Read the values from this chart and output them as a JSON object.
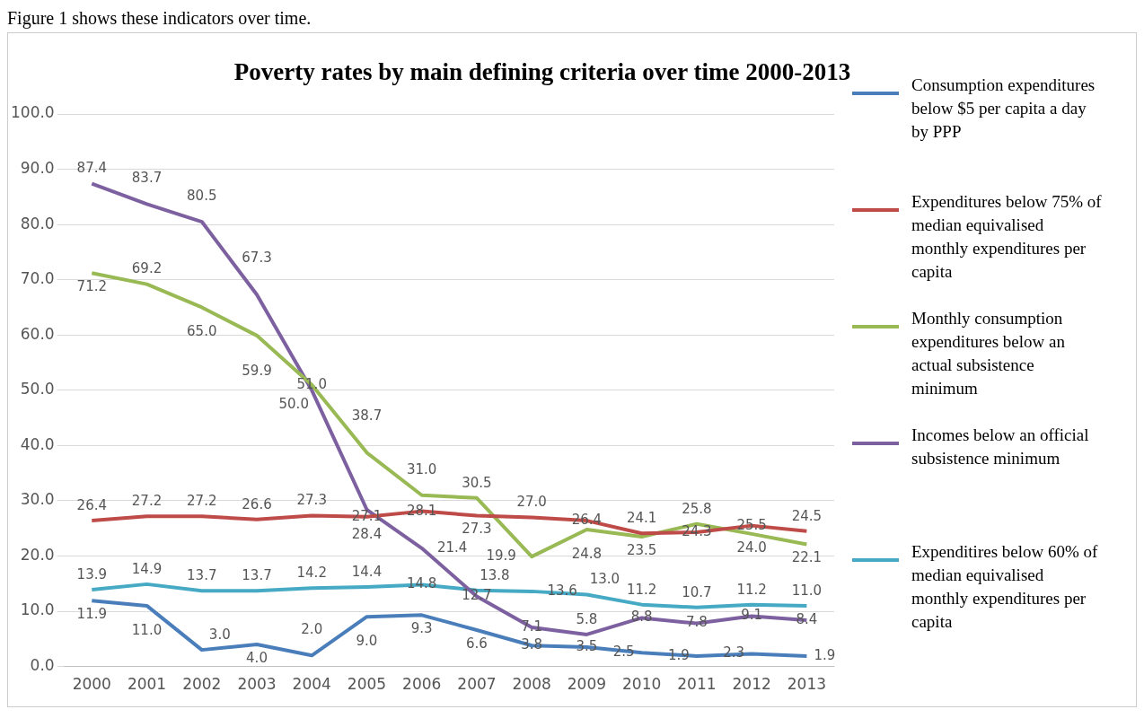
{
  "chart_data": {
    "type": "line",
    "title": "Poverty rates by main defining criteria over time 2000-2013",
    "annotations": [
      "Figure 1 shows these indicators over time."
    ],
    "categories": [
      "2000",
      "2001",
      "2002",
      "2003",
      "2004",
      "2005",
      "2006",
      "2007",
      "2008",
      "2009",
      "2010",
      "2011",
      "2012",
      "2013"
    ],
    "series": [
      {
        "name": "Consumption expenditures below $5 per capita a day by PPP",
        "color": "#4a7ebb",
        "values": [
          11.9,
          11.0,
          3.0,
          4.0,
          2.0,
          9.0,
          9.3,
          6.6,
          3.8,
          3.5,
          2.5,
          1.9,
          2.3,
          1.9
        ],
        "value_labels": [
          "11.9",
          "11.0",
          "3.0",
          "4.0",
          "2.0",
          "9.0",
          "9.3",
          "6.6",
          "3.8",
          "3.5",
          "2.5",
          "1.9",
          "2.3",
          "1.9"
        ]
      },
      {
        "name": "Expenditures below 75% of median equivalised monthly expenditures per capita",
        "color": "#be4b48",
        "values": [
          26.4,
          27.2,
          27.2,
          26.6,
          27.3,
          27.1,
          28.1,
          27.3,
          27.0,
          26.4,
          24.1,
          24.3,
          25.5,
          24.5
        ],
        "value_labels": [
          "26.4",
          "27.2",
          "27.2",
          "26.6",
          "27.3",
          "27.1",
          "28.1",
          "27.3",
          "27.0",
          "26.4",
          "24.1",
          "24.3",
          "25.5",
          "24.5"
        ]
      },
      {
        "name": "Monthly consumption expenditures below an actual subsistence minimum",
        "color": "#98b954",
        "values": [
          71.2,
          69.2,
          65.0,
          59.9,
          51.0,
          38.7,
          31.0,
          30.5,
          19.9,
          24.8,
          23.5,
          25.8,
          24.0,
          22.1
        ],
        "value_labels": [
          "71.2",
          "69.2",
          "65.0",
          "59.9",
          "51.0",
          "38.7",
          "31.0",
          "30.5",
          "19.9",
          "24.8",
          "23.5",
          "25.8",
          "24.0",
          "22.1"
        ]
      },
      {
        "name": "Incomes below an official subsistence minimum",
        "color": "#7d60a0",
        "values": [
          87.4,
          83.7,
          80.5,
          67.3,
          50.0,
          28.4,
          21.4,
          12.7,
          7.1,
          5.8,
          8.8,
          7.8,
          9.1,
          8.4
        ],
        "value_labels": [
          "87.4",
          "83.7",
          "80.5",
          "67.3",
          "50.0",
          "28.4",
          "21.4",
          "12.7",
          "7.1",
          "5.8",
          "8.8",
          "7.8",
          "9.1",
          "8.4"
        ]
      },
      {
        "name": "Expenditires below 60% of median equivalised monthly expenditures per capita",
        "color": "#46aac5",
        "values": [
          13.9,
          14.9,
          13.7,
          13.7,
          14.2,
          14.4,
          14.8,
          13.8,
          13.6,
          13.0,
          11.2,
          10.7,
          11.2,
          11.0
        ],
        "value_labels": [
          "13.9",
          "14.9",
          "13.7",
          "13.7",
          "14.2",
          "14.4",
          "14.8",
          "13.8",
          "13.6",
          "13.0",
          "11.2",
          "10.7",
          "11.2",
          "11.0"
        ]
      }
    ],
    "ylim": [
      0,
      100
    ],
    "yticks": [
      {
        "value": 0,
        "label": "0.0"
      },
      {
        "value": 10,
        "label": "10.0"
      },
      {
        "value": 20,
        "label": "20.0"
      },
      {
        "value": 30,
        "label": "30.0"
      },
      {
        "value": 40,
        "label": "40.0"
      },
      {
        "value": 50,
        "label": "50.0"
      },
      {
        "value": 60,
        "label": "60.0"
      },
      {
        "value": 70,
        "label": "70.0"
      },
      {
        "value": 80,
        "label": "80.0"
      },
      {
        "value": 90,
        "label": "90.0"
      },
      {
        "value": 100,
        "label": "100.0"
      }
    ],
    "grid": "y",
    "legend": "right",
    "marker": "none"
  }
}
